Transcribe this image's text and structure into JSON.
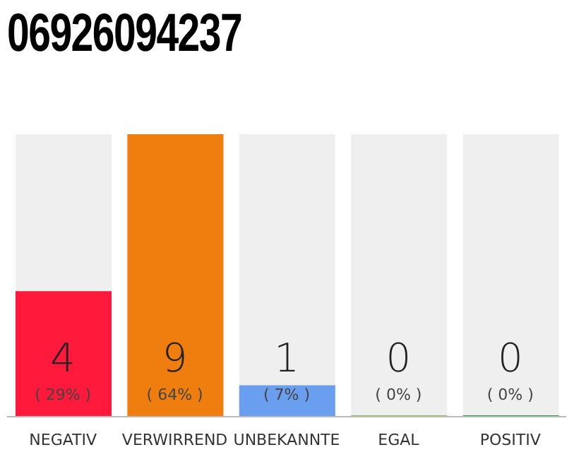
{
  "chart_data": {
    "type": "bar",
    "title": "06926094237",
    "categories": [
      "NEGATIV",
      "VERWIRREND",
      "UNBEKANNTE",
      "EGAL",
      "POSITIV"
    ],
    "values": [
      4,
      9,
      1,
      0,
      0
    ],
    "colors": [
      "#ff1a3c",
      "#f07e0e",
      "#6a9ff0",
      "#8bc34a",
      "#2aa34a"
    ],
    "data_labels": true,
    "annotations": [
      "( 29% )",
      "( 64% )",
      "( 7% )",
      "( 0% )",
      "( 0% )"
    ]
  }
}
